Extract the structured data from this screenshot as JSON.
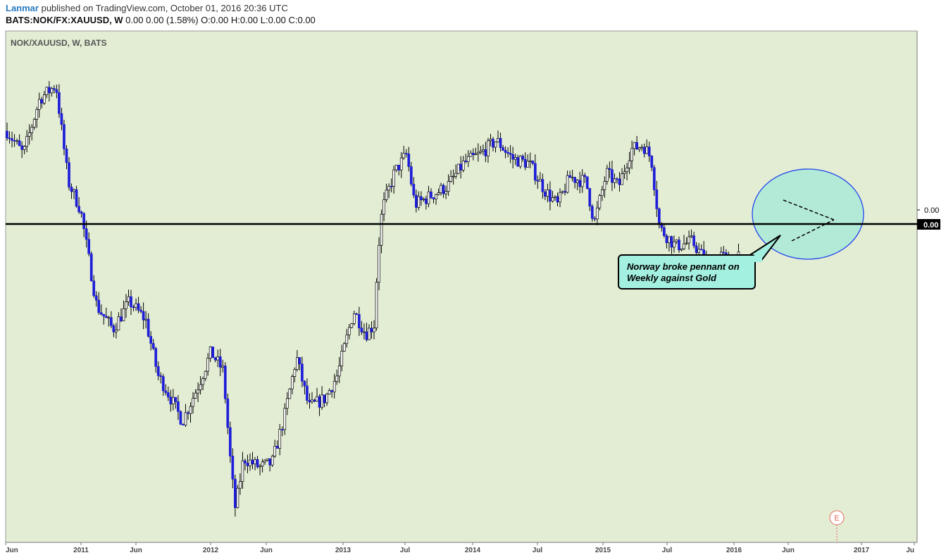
{
  "header": {
    "author": "Lanmar",
    "published_text": "published on TradingView.com, October 01, 2016 20:36 UTC",
    "symbol_line_prefix": "BATS:NOK/FX:XAUUSD, W",
    "symbol_line_values": "0.00 0.00 (1.58%) O:0.00 H:0.00 L:0.00 C:0.00"
  },
  "chart_title": "NOK/XAUUSD, W, BATS",
  "annotation": {
    "line1": "Norway broke pennant on",
    "line2": "Weekly against Gold"
  },
  "price_labels": {
    "upper": "0.00",
    "line": "0.00"
  },
  "earnings_marker": "E",
  "colors": {
    "background": "#e3edd4",
    "up_candle": "#ffffff",
    "down_candle": "#1f1fd9",
    "wick": "#000000",
    "highlight": "#a3e8d8",
    "ellipse_stroke": "#2244ee"
  },
  "chart_data": {
    "type": "candlestick",
    "title": "NOK/XAUUSD, W, BATS",
    "x_ticks": [
      "Jun",
      "2011",
      "Jun",
      "2012",
      "Jun",
      "2013",
      "Jul",
      "2014",
      "Jul",
      "2015",
      "Jul",
      "2016",
      "Jun",
      "2017",
      "Ju"
    ],
    "horizontal_line_label": "0.00",
    "grid": false,
    "price_path_relative": [
      [
        0.0,
        0.85
      ],
      [
        0.02,
        0.8
      ],
      [
        0.04,
        0.92
      ],
      [
        0.06,
        0.95
      ],
      [
        0.075,
        0.74
      ],
      [
        0.09,
        0.68
      ],
      [
        0.11,
        0.47
      ],
      [
        0.13,
        0.42
      ],
      [
        0.15,
        0.48
      ],
      [
        0.17,
        0.44
      ],
      [
        0.185,
        0.32
      ],
      [
        0.195,
        0.29
      ],
      [
        0.215,
        0.22
      ],
      [
        0.235,
        0.3
      ],
      [
        0.25,
        0.37
      ],
      [
        0.265,
        0.33
      ],
      [
        0.275,
        0.11
      ],
      [
        0.28,
        0.03
      ],
      [
        0.29,
        0.14
      ],
      [
        0.31,
        0.12
      ],
      [
        0.325,
        0.13
      ],
      [
        0.34,
        0.23
      ],
      [
        0.355,
        0.36
      ],
      [
        0.37,
        0.25
      ],
      [
        0.39,
        0.27
      ],
      [
        0.405,
        0.32
      ],
      [
        0.425,
        0.46
      ],
      [
        0.44,
        0.41
      ],
      [
        0.45,
        0.43
      ],
      [
        0.455,
        0.59
      ],
      [
        0.46,
        0.68
      ],
      [
        0.475,
        0.76
      ],
      [
        0.49,
        0.8
      ],
      [
        0.5,
        0.69
      ],
      [
        0.52,
        0.71
      ],
      [
        0.54,
        0.73
      ],
      [
        0.56,
        0.78
      ],
      [
        0.58,
        0.8
      ],
      [
        0.6,
        0.83
      ],
      [
        0.62,
        0.79
      ],
      [
        0.64,
        0.78
      ],
      [
        0.66,
        0.72
      ],
      [
        0.675,
        0.69
      ],
      [
        0.69,
        0.75
      ],
      [
        0.71,
        0.74
      ],
      [
        0.72,
        0.65
      ],
      [
        0.735,
        0.76
      ],
      [
        0.75,
        0.73
      ],
      [
        0.765,
        0.81
      ],
      [
        0.78,
        0.82
      ],
      [
        0.79,
        0.79
      ],
      [
        0.8,
        0.64
      ],
      [
        0.81,
        0.62
      ],
      [
        0.82,
        0.6
      ],
      [
        0.84,
        0.61
      ],
      [
        0.86,
        0.56
      ],
      [
        0.875,
        0.58
      ],
      [
        0.89,
        0.56
      ],
      [
        0.9,
        0.58
      ]
    ]
  }
}
